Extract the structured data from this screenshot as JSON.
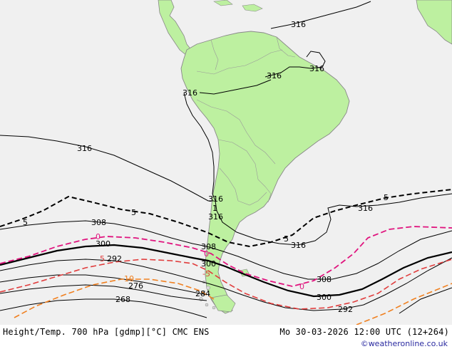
{
  "footer": {
    "left": "Height/Temp. 700 hPa [gdmp][°C] CMC ENS",
    "right": "Mo 30-03-2026 12:00 UTC (12+264)",
    "credit": "©weatheronline.co.uk"
  },
  "colors": {
    "ocean": "#f0f0f0",
    "land": "#bdf0a0",
    "border": "#888888",
    "height_contour": "#000000",
    "temp_0": "#e0147e",
    "temp_5": "#000000",
    "temp_minus5": "#e03c3c",
    "temp_minus10": "#f08020"
  },
  "labels": {
    "h316_a": "316",
    "h316_b": "316",
    "h316_c": "316",
    "h316_d": "316",
    "h316_e": "316",
    "h316_f": "316",
    "h316_g": "316",
    "h316_h": "316",
    "h308_a": "308",
    "h308_b": "308",
    "h308_c": "308",
    "h300_a": "300",
    "h300_b": "300",
    "h300_c": "300",
    "h292_a": "292",
    "h292_b": "292",
    "h284": "284",
    "h276": "276",
    "h268": "268",
    "t5_a": "5",
    "t5_b": "5",
    "t5_c": "5",
    "t5_d": "5",
    "t5_e": "5",
    "t0_a": "0",
    "t0_b": "0",
    "t0_c": "0",
    "tm5": "-5",
    "tm10": "-10",
    "tm1": "1",
    "t5f": "5"
  }
}
